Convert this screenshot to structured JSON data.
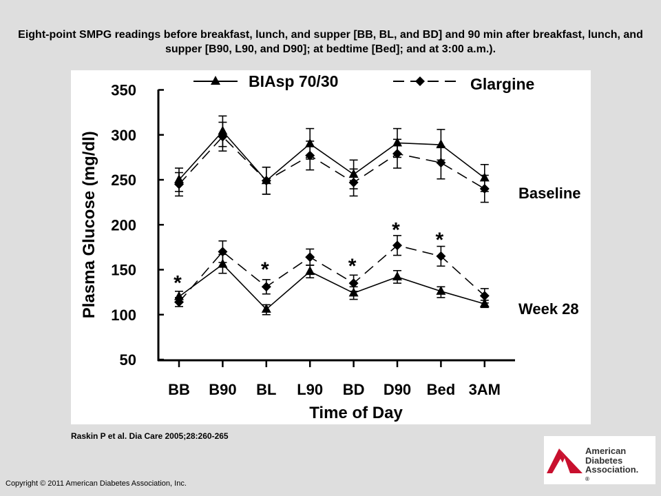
{
  "title": "Eight-point SMPG readings before breakfast, lunch, and supper [BB, BL, and BD] and 90 min after breakfast, lunch, and supper [B90, L90, and D90]; at bedtime [Bed]; and at 3:00 a.m.).",
  "citation": "Raskin P et al. Dia Care 2005;28:260-265",
  "copyright": "Copyright © 2011 American Diabetes Association, Inc.",
  "logo": {
    "line1": "American",
    "line2": "Diabetes",
    "line3": "Association.",
    "mark": "®"
  },
  "colors": {
    "background": "#dedede",
    "panel": "#ffffff",
    "ink": "#000000",
    "logo_red": "#c8102e"
  },
  "chart_data": {
    "type": "line",
    "xlabel": "Time of Day",
    "ylabel": "Plasma Glucose (mg/dl)",
    "categories": [
      "BB",
      "B90",
      "BL",
      "L90",
      "BD",
      "D90",
      "Bed",
      "3AM"
    ],
    "ylim": [
      50,
      350
    ],
    "yticks": [
      50,
      100,
      150,
      200,
      250,
      300,
      350
    ],
    "grid": false,
    "legend_position": "top",
    "legend": [
      {
        "name": "BIAsp 70/30",
        "marker": "triangle",
        "line": "solid"
      },
      {
        "name": "Glargine",
        "marker": "diamond",
        "line": "dashed"
      }
    ],
    "groups": [
      {
        "label": "Baseline",
        "series": [
          {
            "name": "BIAsp 70/30",
            "values": [
              250,
              304,
              249,
              290,
              256,
              291,
              289,
              252
            ],
            "upper": [
              263,
              321,
              264,
              307,
              272,
              307,
              306,
              267
            ],
            "lower": [
              237,
              287,
              234,
              273,
              240,
              275,
              272,
              237
            ]
          },
          {
            "name": "Glargine",
            "values": [
              245,
              298,
              249,
              277,
              247,
              279,
              269,
              240
            ],
            "upper": [
              258,
              314,
              264,
              293,
              262,
              295,
              287,
              255
            ],
            "lower": [
              232,
              282,
              234,
              261,
              232,
              263,
              251,
              225
            ]
          }
        ]
      },
      {
        "label": "Week 28",
        "series": [
          {
            "name": "BIAsp 70/30",
            "values": [
              120,
              156,
              106,
              148,
              124,
              142,
              126,
              112
            ],
            "upper": [
              126,
              167,
              111,
              155,
              131,
              149,
              131,
              116
            ],
            "lower": [
              114,
              146,
              100,
              141,
              117,
              135,
              119,
              108
            ]
          },
          {
            "name": "Glargine",
            "values": [
              114,
              170,
              131,
              164,
              135,
              177,
              165,
              121
            ],
            "upper": [
              119,
              182,
              139,
              173,
              144,
              188,
              176,
              129
            ],
            "lower": [
              109,
              158,
              123,
              155,
              126,
              166,
              154,
              113
            ]
          }
        ]
      }
    ],
    "annotations": [
      {
        "text": "*",
        "category": "BB",
        "y": 140
      },
      {
        "text": "*",
        "category": "BL",
        "y": 155
      },
      {
        "text": "*",
        "category": "BD",
        "y": 159
      },
      {
        "text": "*",
        "category": "D90",
        "y": 199
      },
      {
        "text": "*",
        "category": "Bed",
        "y": 188
      }
    ]
  }
}
